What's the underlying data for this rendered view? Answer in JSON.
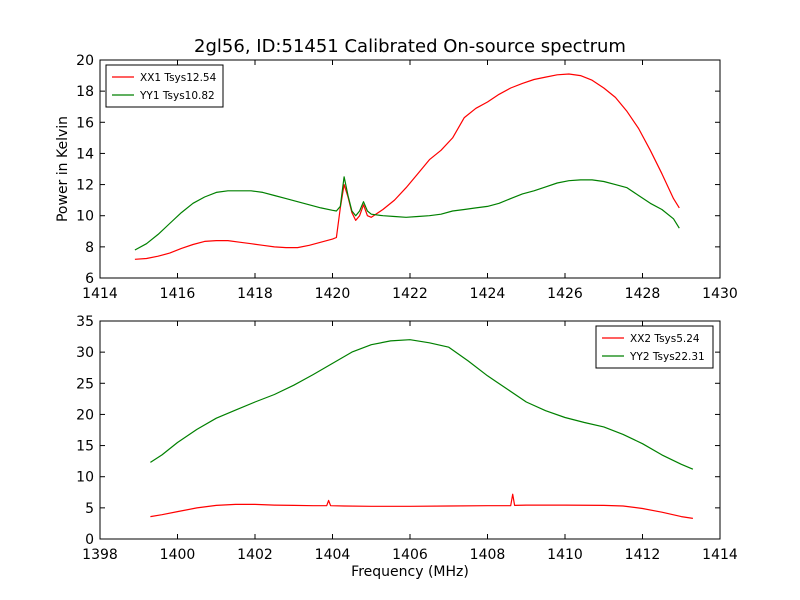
{
  "figure": {
    "title": "2gl56, ID:51451 Calibrated On-source spectrum"
  },
  "chart_data": [
    {
      "type": "line",
      "title": "2gl56, ID:51451 Calibrated On-source spectrum",
      "xlabel": "",
      "ylabel": "Power in Kelvin",
      "xlim": [
        1414,
        1430
      ],
      "ylim": [
        6,
        20
      ],
      "xticks": [
        1414,
        1416,
        1418,
        1420,
        1422,
        1424,
        1426,
        1428,
        1430
      ],
      "yticks": [
        6,
        8,
        10,
        12,
        14,
        16,
        18,
        20
      ],
      "grid": false,
      "legend": "top-left",
      "series": [
        {
          "name": "XX1 Tsys12.54",
          "color": "#ff0000",
          "x": [
            1414.9,
            1415.2,
            1415.5,
            1415.8,
            1416.1,
            1416.4,
            1416.7,
            1417.0,
            1417.3,
            1417.6,
            1417.9,
            1418.2,
            1418.5,
            1418.8,
            1419.1,
            1419.4,
            1419.7,
            1420.0,
            1420.1,
            1420.2,
            1420.3,
            1420.4,
            1420.5,
            1420.6,
            1420.7,
            1420.8,
            1420.9,
            1421.0,
            1421.3,
            1421.6,
            1421.9,
            1422.2,
            1422.5,
            1422.8,
            1423.1,
            1423.4,
            1423.7,
            1424.0,
            1424.3,
            1424.6,
            1424.9,
            1425.2,
            1425.5,
            1425.8,
            1426.1,
            1426.4,
            1426.7,
            1427.0,
            1427.3,
            1427.6,
            1427.9,
            1428.2,
            1428.5,
            1428.8,
            1428.95
          ],
          "y": [
            7.2,
            7.25,
            7.4,
            7.6,
            7.9,
            8.15,
            8.35,
            8.4,
            8.4,
            8.3,
            8.2,
            8.1,
            8.0,
            7.95,
            7.95,
            8.1,
            8.3,
            8.5,
            8.6,
            10.5,
            12.0,
            11.2,
            10.2,
            9.7,
            10.0,
            10.7,
            10.0,
            9.9,
            10.4,
            11.0,
            11.8,
            12.7,
            13.6,
            14.2,
            15.0,
            16.3,
            16.9,
            17.3,
            17.8,
            18.2,
            18.5,
            18.75,
            18.9,
            19.05,
            19.1,
            19.0,
            18.7,
            18.2,
            17.6,
            16.7,
            15.6,
            14.2,
            12.7,
            11.1,
            10.5
          ]
        },
        {
          "name": "YY1 Tsys10.82",
          "color": "#008000",
          "x": [
            1414.9,
            1415.2,
            1415.5,
            1415.8,
            1416.1,
            1416.4,
            1416.7,
            1417.0,
            1417.3,
            1417.6,
            1417.9,
            1418.2,
            1418.5,
            1418.8,
            1419.1,
            1419.4,
            1419.7,
            1420.0,
            1420.1,
            1420.2,
            1420.3,
            1420.4,
            1420.5,
            1420.6,
            1420.7,
            1420.8,
            1420.9,
            1421.0,
            1421.3,
            1421.6,
            1421.9,
            1422.2,
            1422.5,
            1422.8,
            1423.1,
            1423.4,
            1423.7,
            1424.0,
            1424.3,
            1424.6,
            1424.9,
            1425.2,
            1425.5,
            1425.8,
            1426.1,
            1426.4,
            1426.7,
            1427.0,
            1427.3,
            1427.6,
            1427.9,
            1428.2,
            1428.5,
            1428.8,
            1428.95
          ],
          "y": [
            7.8,
            8.2,
            8.8,
            9.5,
            10.2,
            10.8,
            11.2,
            11.5,
            11.6,
            11.6,
            11.6,
            11.5,
            11.3,
            11.1,
            10.9,
            10.7,
            10.5,
            10.35,
            10.3,
            10.6,
            12.5,
            11.3,
            10.3,
            10.0,
            10.3,
            10.9,
            10.3,
            10.1,
            10.0,
            9.95,
            9.9,
            9.95,
            10.0,
            10.1,
            10.3,
            10.4,
            10.5,
            10.6,
            10.8,
            11.1,
            11.4,
            11.6,
            11.85,
            12.1,
            12.25,
            12.3,
            12.3,
            12.2,
            12.0,
            11.8,
            11.3,
            10.8,
            10.4,
            9.8,
            9.2
          ]
        }
      ]
    },
    {
      "type": "line",
      "title": "",
      "xlabel": "Frequency (MHz)",
      "ylabel": "",
      "xlim": [
        1398,
        1414
      ],
      "ylim": [
        0,
        35
      ],
      "xticks": [
        1398,
        1400,
        1402,
        1404,
        1406,
        1408,
        1410,
        1412,
        1414
      ],
      "yticks": [
        0,
        5,
        10,
        15,
        20,
        25,
        30,
        35
      ],
      "grid": false,
      "legend": "top-right",
      "series": [
        {
          "name": "XX2 Tsys5.24",
          "color": "#ff0000",
          "x": [
            1399.3,
            1399.6,
            1400.0,
            1400.5,
            1401.0,
            1401.5,
            1402.0,
            1402.5,
            1403.0,
            1403.5,
            1403.85,
            1403.9,
            1403.95,
            1404.3,
            1405.0,
            1406.0,
            1407.0,
            1408.0,
            1408.6,
            1408.65,
            1408.7,
            1409.0,
            1410.0,
            1411.0,
            1411.5,
            1412.0,
            1412.5,
            1413.0,
            1413.3
          ],
          "y": [
            3.6,
            3.9,
            4.4,
            5.0,
            5.4,
            5.55,
            5.55,
            5.45,
            5.4,
            5.35,
            5.35,
            6.2,
            5.35,
            5.3,
            5.25,
            5.25,
            5.3,
            5.35,
            5.35,
            7.2,
            5.4,
            5.45,
            5.45,
            5.4,
            5.3,
            4.9,
            4.3,
            3.6,
            3.3
          ]
        },
        {
          "name": "YY2 Tsys22.31",
          "color": "#008000",
          "x": [
            1399.3,
            1399.6,
            1400.0,
            1400.5,
            1401.0,
            1401.5,
            1402.0,
            1402.5,
            1403.0,
            1403.5,
            1404.0,
            1404.5,
            1405.0,
            1405.5,
            1406.0,
            1406.5,
            1407.0,
            1407.5,
            1408.0,
            1408.5,
            1409.0,
            1409.5,
            1410.0,
            1410.5,
            1411.0,
            1411.5,
            1412.0,
            1412.5,
            1413.0,
            1413.3
          ],
          "y": [
            12.3,
            13.5,
            15.5,
            17.6,
            19.4,
            20.7,
            22.0,
            23.2,
            24.7,
            26.4,
            28.2,
            30.0,
            31.2,
            31.8,
            32.0,
            31.5,
            30.8,
            28.6,
            26.2,
            24.1,
            22.0,
            20.6,
            19.5,
            18.7,
            18.0,
            16.8,
            15.3,
            13.5,
            12.0,
            11.2
          ]
        }
      ]
    }
  ]
}
